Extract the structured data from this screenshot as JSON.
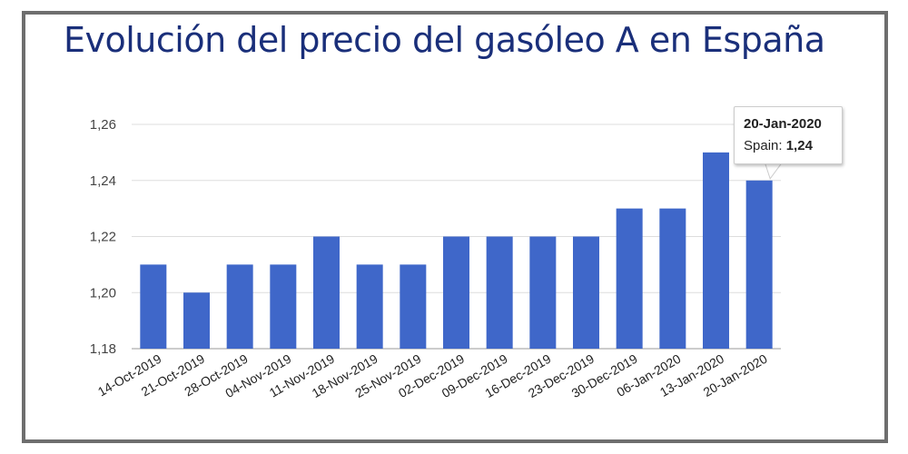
{
  "chart_data": {
    "type": "bar",
    "title": "Evolución del precio del gasóleo A en España",
    "xlabel": "",
    "ylabel": "",
    "categories": [
      "14-Oct-2019",
      "21-Oct-2019",
      "28-Oct-2019",
      "04-Nov-2019",
      "11-Nov-2019",
      "18-Nov-2019",
      "25-Nov-2019",
      "02-Dec-2019",
      "09-Dec-2019",
      "16-Dec-2019",
      "23-Dec-2019",
      "30-Dec-2019",
      "06-Jan-2020",
      "13-Jan-2020",
      "20-Jan-2020"
    ],
    "series": [
      {
        "name": "Spain",
        "values": [
          1.21,
          1.2,
          1.21,
          1.21,
          1.22,
          1.21,
          1.21,
          1.22,
          1.22,
          1.22,
          1.22,
          1.23,
          1.23,
          1.25,
          1.24
        ]
      }
    ],
    "ylim": [
      1.18,
      1.26
    ],
    "yticks": [
      "1,18",
      "1,20",
      "1,22",
      "1,24",
      "1,26"
    ],
    "grid": true,
    "color": "#3f67c9",
    "tooltip": {
      "date": "20-Jan-2020",
      "series_label": "Spain:",
      "value": "1,24"
    }
  }
}
